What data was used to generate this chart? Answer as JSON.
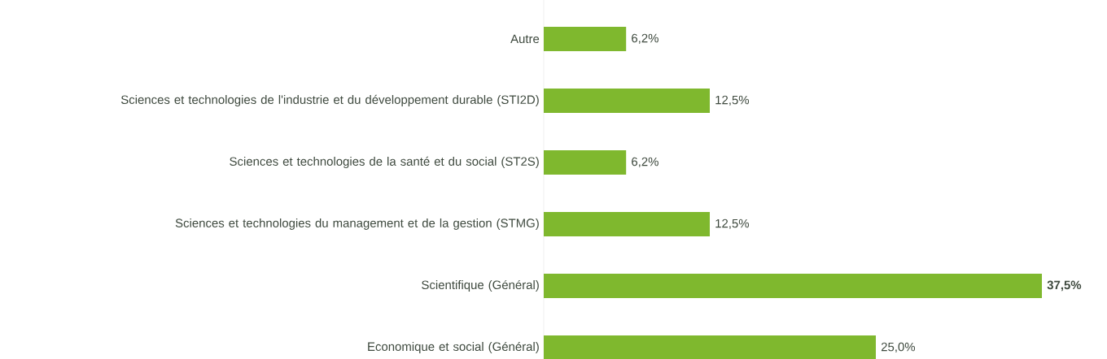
{
  "chart_data": {
    "type": "bar",
    "orientation": "horizontal",
    "categories": [
      "Autre",
      "Sciences et technologies de l'industrie et du développement durable (STI2D)",
      "Sciences et technologies de la santé et du social (ST2S)",
      "Sciences et technologies du management et de la gestion (STMG)",
      "Scientifique (Général)",
      "Economique et social (Général)"
    ],
    "values": [
      6.2,
      12.5,
      6.2,
      12.5,
      37.5,
      25.0
    ],
    "value_labels": [
      "6,2%",
      "12,5%",
      "6,2%",
      "12,5%",
      "**37,5%**",
      "25,0%"
    ],
    "color": "#7fb82e"
  }
}
